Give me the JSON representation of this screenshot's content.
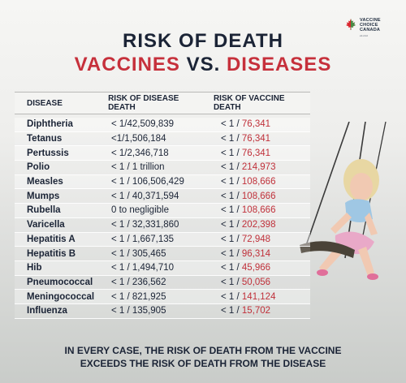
{
  "brand": {
    "line1": "VACCINE",
    "line2": "CHOICE",
    "line3": "CANADA",
    "line4": "vc.cmr"
  },
  "title": {
    "line1": "RISK OF DEATH",
    "vaccines": "VACCINES",
    "vs": "VS.",
    "diseases": "DISEASES"
  },
  "table": {
    "headers": {
      "disease": "DISEASE",
      "disease_death": "RISK OF DISEASE DEATH",
      "vaccine_death": "RISK OF VACCINE DEATH"
    },
    "rows": [
      {
        "disease": "Diphtheria",
        "disease_risk": "< 1/42,509,839",
        "vaccine_prefix": "< 1 / ",
        "vaccine_value": "76,341"
      },
      {
        "disease": "Tetanus",
        "disease_risk": "<1/1,506,184",
        "vaccine_prefix": "< 1 / ",
        "vaccine_value": "76,341"
      },
      {
        "disease": "Pertussis",
        "disease_risk": "< 1/2,346,718",
        "vaccine_prefix": "< 1 / ",
        "vaccine_value": "76,341"
      },
      {
        "disease": "Polio",
        "disease_risk": "< 1 / 1 trillion",
        "vaccine_prefix": "< 1 / ",
        "vaccine_value": "214,973"
      },
      {
        "disease": "Measles",
        "disease_risk": "< 1 / 106,506,429",
        "vaccine_prefix": "< 1 / ",
        "vaccine_value": "108,666"
      },
      {
        "disease": "Mumps",
        "disease_risk": "< 1 / 40,371,594",
        "vaccine_prefix": "< 1 / ",
        "vaccine_value": "108,666"
      },
      {
        "disease": "Rubella",
        "disease_risk": "0 to negligible",
        "vaccine_prefix": "< 1 / ",
        "vaccine_value": "108,666"
      },
      {
        "disease": "Varicella",
        "disease_risk": "< 1 / 32,331,860",
        "vaccine_prefix": "< 1 / ",
        "vaccine_value": "202,398"
      },
      {
        "disease": "Hepatitis A",
        "disease_risk": "< 1 / 1,667,135",
        "vaccine_prefix": "< 1 / ",
        "vaccine_value": "72,948"
      },
      {
        "disease": "Hepatitis B",
        "disease_risk": "< 1 / 305,465",
        "vaccine_prefix": "< 1 / ",
        "vaccine_value": "96,314"
      },
      {
        "disease": "Hib",
        "disease_risk": "< 1 / 1,494,710",
        "vaccine_prefix": "< 1 / ",
        "vaccine_value": "45,966"
      },
      {
        "disease": "Pneumococcal",
        "disease_risk": "< 1 / 236,562",
        "vaccine_prefix": "< 1 / ",
        "vaccine_value": "50,056"
      },
      {
        "disease": "Meningococcal",
        "disease_risk": "< 1 / 821,925",
        "vaccine_prefix": "< 1 / ",
        "vaccine_value": "141,124"
      },
      {
        "disease": "Influenza",
        "disease_risk": "< 1 / 135,905",
        "vaccine_prefix": "< 1 / ",
        "vaccine_value": "15,702"
      }
    ]
  },
  "footer": {
    "line1": "IN EVERY CASE, THE RISK OF DEATH FROM THE VACCINE",
    "line2": "EXCEEDS THE RISK OF DEATH FROM THE DISEASE"
  },
  "colors": {
    "red": "#c6303b",
    "navy": "#1b2436",
    "maple_red": "#d9262e",
    "maple_green": "#2e9e4a"
  },
  "icons": {
    "logo": "maple-leaf-icon"
  }
}
